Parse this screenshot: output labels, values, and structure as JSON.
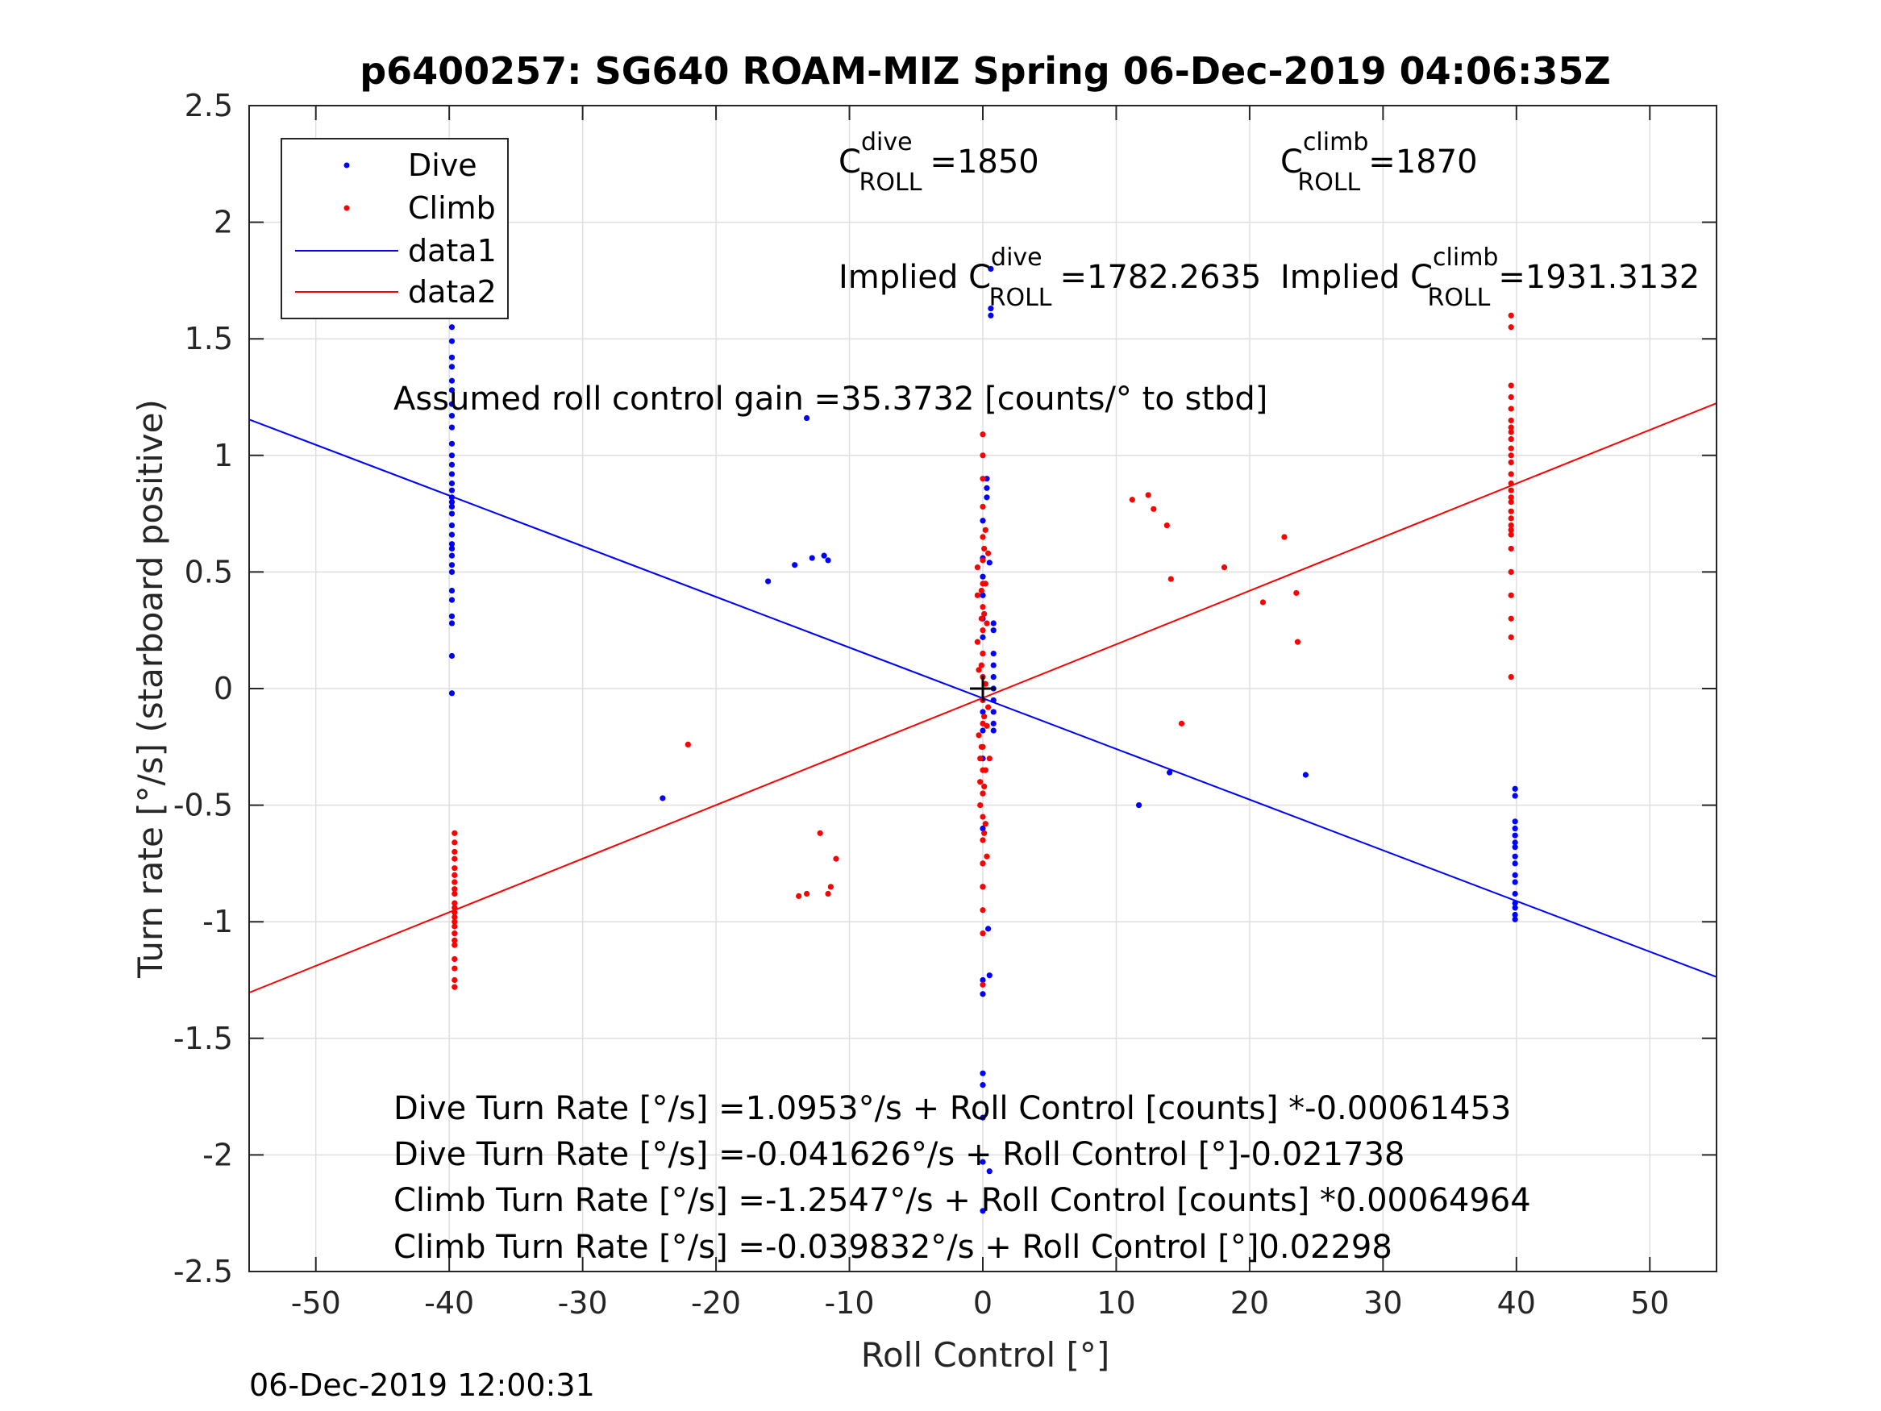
{
  "chart_data": {
    "type": "scatter",
    "title": "p6400257: SG640 ROAM-MIZ Spring 06-Dec-2019 04:06:35Z",
    "xlabel": "Roll Control [°]",
    "ylabel": "Turn rate [°/s] (starboard positive)",
    "xlim": [
      -55,
      55
    ],
    "ylim": [
      -2.5,
      2.5
    ],
    "xticks": [
      -50,
      -40,
      -30,
      -20,
      -10,
      0,
      10,
      20,
      30,
      40,
      50
    ],
    "xtick_labels": [
      "-50",
      "-40",
      "-30",
      "-20",
      "-10",
      "0",
      "10",
      "20",
      "30",
      "40",
      "50"
    ],
    "yticks": [
      2.5,
      2,
      1.5,
      1,
      0.5,
      0,
      -0.5,
      -1,
      -1.5,
      -2,
      -2.5
    ],
    "ytick_labels": [
      "2.5",
      "2",
      "1.5",
      "1",
      "0.5",
      "0",
      "-0.5",
      "-1",
      "-1.5",
      "-2",
      "-2.5"
    ],
    "grid": true,
    "legend_position": "top-left",
    "legend": [
      "Dive",
      "Climb",
      "data1",
      "data2"
    ],
    "colors": {
      "dive": "#0000ff",
      "climb": "#ff0000",
      "center_marker": "#000000"
    },
    "series": [
      {
        "name": "Dive",
        "kind": "points",
        "color": "#0000ff",
        "x": [
          -39.8,
          -39.8,
          -39.8,
          -39.8,
          -39.8,
          -39.8,
          -39.8,
          -39.8,
          -39.8,
          -39.8,
          -39.8,
          -39.8,
          -39.8,
          -39.8,
          -39.8,
          -39.8,
          -39.8,
          -39.8,
          -39.8,
          -39.8,
          -39.8,
          -39.8,
          -39.8,
          -39.8,
          -39.8,
          -39.8,
          -39.8,
          -39.8,
          -39.8,
          -39.8,
          -39.8,
          -39.8,
          -39.8,
          -39.8,
          -16.1,
          -14.1,
          -12.8,
          -11.9,
          -11.6,
          -13.2,
          -24,
          11.7,
          14,
          24.2,
          0,
          0,
          0,
          0,
          0,
          0,
          0,
          0,
          0,
          0,
          0,
          0,
          0,
          0,
          0,
          0,
          0,
          0,
          0,
          0,
          0,
          0,
          0.3,
          0.3,
          0.3,
          0.4,
          0.5,
          0.5,
          0.5,
          0.6,
          0.6,
          0.6,
          0.8,
          0.8,
          0.8,
          0.8,
          0.8,
          0.8,
          0.8,
          0.8,
          0.8,
          0.8,
          39.9,
          39.9,
          39.9,
          39.9,
          39.9,
          39.9,
          39.9,
          39.9,
          39.9,
          39.9,
          39.9,
          39.9,
          39.9,
          39.9,
          39.9,
          39.9
        ],
        "y": [
          1.65,
          1.62,
          1.55,
          1.49,
          1.42,
          1.38,
          1.32,
          1.28,
          1.22,
          1.17,
          1.12,
          1.05,
          1.0,
          0.96,
          0.92,
          0.88,
          0.85,
          0.82,
          0.8,
          0.78,
          0.75,
          0.7,
          0.66,
          0.62,
          0.6,
          0.57,
          0.53,
          0.5,
          0.42,
          0.38,
          0.31,
          0.28,
          0.14,
          -0.02,
          0.46,
          0.53,
          0.56,
          0.57,
          0.55,
          1.16,
          -0.47,
          -0.5,
          -0.36,
          -0.37,
          -2.24,
          -2.03,
          -1.84,
          -1.7,
          -1.65,
          -1.31,
          -1.25,
          -0.85,
          -0.75,
          -0.6,
          -0.45,
          -0.3,
          -0.18,
          -0.1,
          0.05,
          0.15,
          0.22,
          0.3,
          0.4,
          0.48,
          0.56,
          0.72,
          0.86,
          0.9,
          0.82,
          -1.03,
          -2.07,
          -1.23,
          0.54,
          1.6,
          1.63,
          1.8,
          0.28,
          0.25,
          0.15,
          0.1,
          0.05,
          0.0,
          -0.05,
          -0.1,
          -0.15,
          -0.18,
          -0.43,
          -0.46,
          -0.57,
          -0.6,
          -0.63,
          -0.66,
          -0.68,
          -0.72,
          -0.75,
          -0.8,
          -0.83,
          -0.88,
          -0.92,
          -0.94,
          -0.97,
          -0.99
        ]
      },
      {
        "name": "Climb",
        "kind": "points",
        "color": "#ff0000",
        "x": [
          -39.6,
          -39.6,
          -39.6,
          -39.6,
          -39.6,
          -39.6,
          -39.6,
          -39.6,
          -39.6,
          -39.6,
          -39.6,
          -39.6,
          -39.6,
          -39.6,
          -39.6,
          -39.6,
          -39.6,
          -39.6,
          -39.6,
          -39.6,
          -39.6,
          -39.6,
          -22.1,
          -13.8,
          -13.2,
          -12.2,
          -11.6,
          -11.4,
          -11.0,
          11.2,
          12.4,
          12.8,
          13.8,
          14.1,
          14.9,
          18.1,
          21.0,
          22.6,
          23.5,
          23.6,
          -0.4,
          -0.4,
          -0.4,
          -0.3,
          -0.3,
          -0.2,
          -0.2,
          -0.2,
          -0.1,
          -0.1,
          -0.1,
          -0.1,
          0,
          0,
          0,
          0,
          0,
          0,
          0,
          0,
          0,
          0,
          0,
          0,
          0,
          0,
          0,
          0,
          0,
          0,
          0,
          0,
          0,
          0,
          0,
          0.1,
          0.1,
          0.1,
          0.1,
          0.1,
          0.2,
          0.2,
          0.2,
          0.2,
          0.2,
          0.3,
          0.3,
          0.3,
          0.4,
          0.4,
          0.5,
          39.6,
          39.6,
          39.6,
          39.6,
          39.6,
          39.6,
          39.6,
          39.6,
          39.6,
          39.6,
          39.6,
          39.6,
          39.6,
          39.6,
          39.6,
          39.6,
          39.6,
          39.6,
          39.6,
          39.6,
          39.6,
          39.6,
          39.6,
          39.6,
          39.6,
          39.6,
          39.6,
          39.6
        ],
        "y": [
          -0.62,
          -0.66,
          -0.7,
          -0.73,
          -0.77,
          -0.8,
          -0.83,
          -0.86,
          -0.88,
          -0.92,
          -0.94,
          -0.96,
          -0.98,
          -1.0,
          -1.02,
          -1.05,
          -1.08,
          -1.1,
          -1.16,
          -1.2,
          -1.25,
          -1.28,
          -0.24,
          -0.89,
          -0.88,
          -0.62,
          -0.88,
          -0.85,
          -0.73,
          0.81,
          0.83,
          0.77,
          0.7,
          0.47,
          -0.15,
          0.52,
          0.37,
          0.65,
          0.41,
          0.2,
          0.52,
          0.4,
          0.2,
          0.08,
          -0.2,
          -0.3,
          -0.4,
          -0.5,
          -0.25,
          0.3,
          0.42,
          0.1,
          1.09,
          1.0,
          0.9,
          0.78,
          0.65,
          0.55,
          0.45,
          0.35,
          0.25,
          0.15,
          0.05,
          -0.05,
          -0.15,
          -0.25,
          -0.35,
          -0.45,
          -0.55,
          -0.65,
          -0.75,
          -0.85,
          -0.95,
          -1.05,
          -1.27,
          0.6,
          0.32,
          -0.12,
          -0.42,
          -0.62,
          0.68,
          0.45,
          0.02,
          -0.35,
          -0.58,
          0.28,
          -0.16,
          -0.72,
          0.58,
          -0.08,
          -0.3,
          1.6,
          1.55,
          1.3,
          1.25,
          1.2,
          1.15,
          1.1,
          1.07,
          1.03,
          1.0,
          0.97,
          0.92,
          0.88,
          0.85,
          0.82,
          0.8,
          0.76,
          0.73,
          0.7,
          0.68,
          0.66,
          0.6,
          0.5,
          0.4,
          0.3,
          0.22,
          0.05,
          1.12
        ]
      },
      {
        "name": "data1",
        "kind": "line",
        "color": "#0000ff",
        "x": [
          -55,
          55
        ],
        "y": [
          1.154,
          -1.237
        ]
      },
      {
        "name": "data2",
        "kind": "line",
        "color": "#ff0000",
        "x": [
          -55,
          55
        ],
        "y": [
          -1.304,
          1.224
        ]
      }
    ],
    "center_marker": {
      "x": 0,
      "y": 0
    },
    "annotations": [
      {
        "id": "c_dive",
        "text": "=1850",
        "base": "C",
        "sup": "dive",
        "sub": "ROLL"
      },
      {
        "id": "c_climb",
        "text": "=1870",
        "base": "C",
        "sup": "climb",
        "sub": "ROLL"
      },
      {
        "id": "implied_dive",
        "text": "=1782.2635",
        "base": "Implied C",
        "sup": "dive",
        "sub": "ROLL"
      },
      {
        "id": "implied_climb",
        "text": "=1931.3132",
        "base": "Implied C",
        "sup": "climb",
        "sub": "ROLL"
      },
      {
        "id": "gain",
        "text": "Assumed roll control gain =35.3732 [counts/° to stbd]"
      },
      {
        "id": "fit1",
        "text": "Dive Turn Rate [°/s] =1.0953°/s + Roll Control [counts] *-0.00061453"
      },
      {
        "id": "fit2",
        "text": "Dive Turn Rate [°/s] =-0.041626°/s + Roll Control [°]-0.021738"
      },
      {
        "id": "fit3",
        "text": "Climb Turn Rate [°/s] =-1.2547°/s + Roll Control [counts] *0.00064964"
      },
      {
        "id": "fit4",
        "text": "Climb Turn Rate [°/s] =-0.039832°/s + Roll Control [°]0.02298"
      }
    ],
    "timestamp": "06-Dec-2019 12:00:31"
  }
}
